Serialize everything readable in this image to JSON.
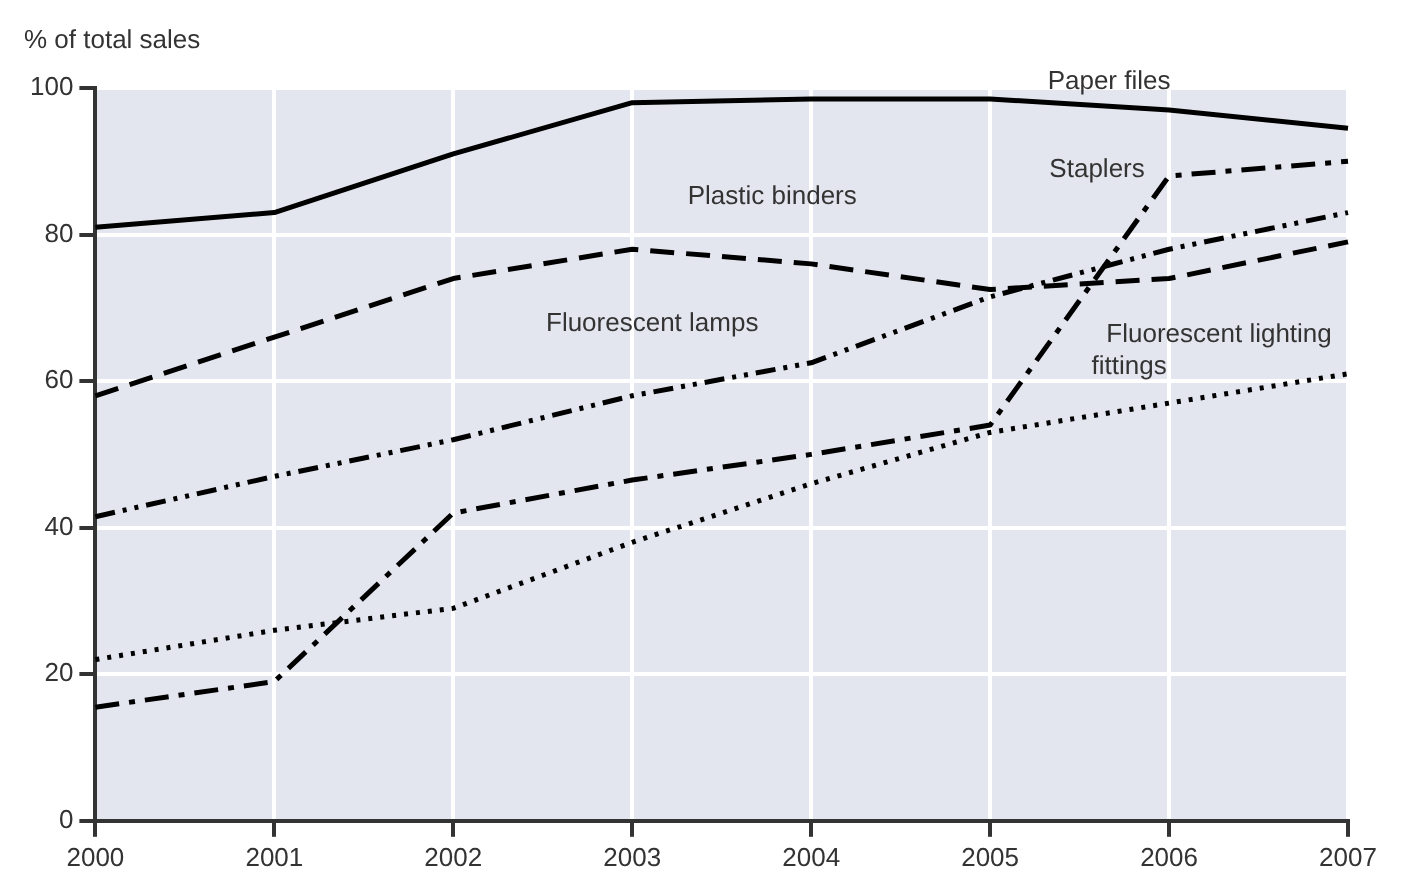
{
  "chart_data": {
    "type": "line",
    "ylabel": "% of total sales",
    "categories": [
      "2000",
      "2001",
      "2002",
      "2003",
      "2004",
      "2005",
      "2006",
      "2007"
    ],
    "series": [
      {
        "name": "Paper files",
        "color": "#000000",
        "line_style": "solid",
        "values": [
          81,
          83,
          91,
          98,
          98.5,
          98.5,
          97,
          94.5
        ]
      },
      {
        "name": "Plastic binders",
        "color": "#000000",
        "line_style": "dashed",
        "values": [
          58,
          66,
          74,
          78,
          76,
          72.5,
          74,
          79
        ]
      },
      {
        "name": "Fluorescent lamps",
        "color": "#000000",
        "line_style": "dashdotdot",
        "values": [
          41.5,
          47,
          52,
          58,
          62.5,
          71.5,
          78,
          83
        ]
      },
      {
        "name": "Staplers",
        "color": "#000000",
        "line_style": "dashdot",
        "values": [
          15.5,
          19,
          42,
          46.5,
          50,
          54,
          88,
          90
        ]
      },
      {
        "name": "Fluorescent lighting fittings",
        "color": "#000000",
        "line_style": "dotted",
        "values": [
          22,
          26,
          29,
          38,
          46,
          53,
          57,
          61
        ]
      }
    ],
    "ylim": [
      0,
      100
    ],
    "yticks": [
      0,
      20,
      40,
      60,
      80,
      100
    ],
    "grid": true,
    "marker": "none",
    "legend": false
  }
}
